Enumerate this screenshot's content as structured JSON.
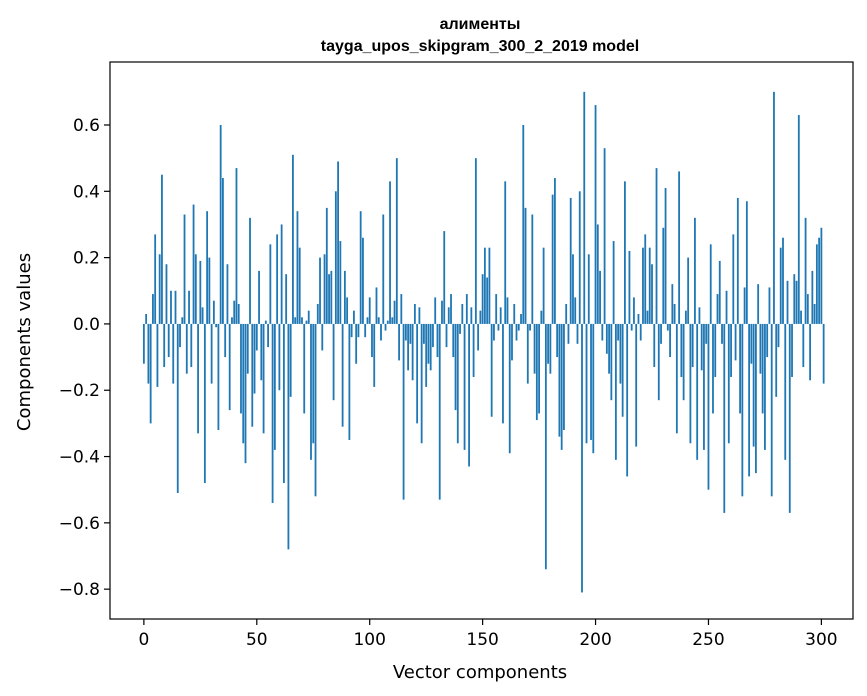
{
  "chart_data": {
    "type": "bar",
    "title": "алименты",
    "subtitle": "tayga_upos_skipgram_300_2_2019 model",
    "xlabel": "Vector components",
    "ylabel": "Components values",
    "xlim": [
      -15,
      314
    ],
    "ylim": [
      -0.89,
      0.79
    ],
    "x_ticks": [
      0,
      50,
      100,
      150,
      200,
      250,
      300
    ],
    "x_tick_labels": [
      "0",
      "50",
      "100",
      "150",
      "200",
      "250",
      "300"
    ],
    "y_ticks": [
      -0.8,
      -0.6,
      -0.4,
      -0.2,
      0.0,
      0.2,
      0.4,
      0.6
    ],
    "y_tick_labels": [
      "−0.8",
      "−0.6",
      "−0.4",
      "−0.2",
      "0.0",
      "0.2",
      "0.4",
      "0.6"
    ],
    "bar_color": "#1f77b4",
    "grid": false,
    "values": [
      -0.12,
      0.03,
      -0.18,
      -0.3,
      0.09,
      0.27,
      -0.19,
      0.21,
      0.45,
      -0.13,
      0.18,
      -0.1,
      0.1,
      -0.18,
      0.1,
      -0.51,
      -0.07,
      0.02,
      0.33,
      -0.15,
      0.1,
      -0.13,
      0.36,
      0.21,
      -0.33,
      0.19,
      0.05,
      -0.48,
      0.34,
      0.2,
      -0.18,
      0.07,
      -0.01,
      -0.32,
      0.6,
      0.44,
      -0.1,
      0.18,
      -0.26,
      0.02,
      0.07,
      0.47,
      0.06,
      -0.27,
      -0.36,
      -0.42,
      -0.15,
      0.32,
      -0.31,
      -0.21,
      -0.08,
      0.16,
      -0.17,
      -0.33,
      0.01,
      -0.07,
      0.24,
      -0.54,
      -0.38,
      0.27,
      -0.2,
      0.3,
      -0.48,
      0.15,
      -0.68,
      -0.22,
      0.51,
      0.02,
      0.34,
      0.23,
      0.02,
      -0.27,
      0.01,
      0.04,
      -0.41,
      -0.36,
      -0.52,
      0.06,
      0.2,
      -0.08,
      0.21,
      0.35,
      0.15,
      0.16,
      -0.23,
      0.4,
      0.49,
      0.25,
      -0.31,
      0.16,
      0.08,
      -0.35,
      -0.04,
      0.04,
      -0.12,
      -0.04,
      0.34,
      0.26,
      -0.04,
      0.02,
      0.08,
      -0.1,
      -0.19,
      0.11,
      0.02,
      -0.05,
      0.33,
      -0.02,
      0.01,
      0.43,
      0.02,
      0.07,
      0.5,
      -0.11,
      0.09,
      -0.53,
      -0.05,
      -0.14,
      -0.06,
      -0.17,
      0.06,
      -0.3,
      0.05,
      -0.36,
      -0.06,
      -0.19,
      -0.12,
      -0.14,
      -0.07,
      0.08,
      -0.1,
      -0.53,
      0.07,
      0.28,
      -0.07,
      0.05,
      0.09,
      -0.1,
      -0.26,
      -0.36,
      -0.03,
      0.06,
      -0.38,
      0.09,
      -0.43,
      0.05,
      -0.16,
      0.5,
      -0.08,
      0.04,
      0.15,
      0.23,
      0.14,
      0.23,
      -0.28,
      -0.05,
      0.09,
      -0.02,
      0.05,
      -0.3,
      0.43,
      0.08,
      -0.39,
      -0.11,
      0.06,
      -0.05,
      -0.02,
      0.03,
      0.6,
      0.35,
      -0.18,
      -0.02,
      0.33,
      -0.15,
      -0.29,
      -0.27,
      0.04,
      0.23,
      -0.74,
      -0.12,
      -0.15,
      0.39,
      0.44,
      -0.1,
      -0.34,
      -0.38,
      -0.32,
      0.06,
      -0.06,
      0.38,
      0.21,
      0.08,
      -0.06,
      0.4,
      -0.81,
      0.7,
      -0.36,
      0.21,
      -0.35,
      -0.39,
      0.66,
      0.3,
      0.16,
      -0.05,
      0.53,
      -0.09,
      -0.15,
      -0.23,
      0.25,
      -0.41,
      -0.05,
      -0.18,
      -0.28,
      0.43,
      -0.46,
      0.22,
      -0.02,
      0.08,
      -0.37,
      0.03,
      -0.05,
      0.23,
      0.27,
      0.04,
      0.23,
      0.18,
      -0.13,
      0.47,
      -0.23,
      -0.06,
      0.29,
      0.41,
      -0.02,
      -0.1,
      0.12,
      0.06,
      -0.33,
      0.46,
      -0.16,
      -0.23,
      0.04,
      0.2,
      -0.36,
      -0.13,
      0.32,
      -0.41,
      0.05,
      -0.14,
      -0.38,
      -0.06,
      -0.5,
      0.24,
      -0.27,
      -0.16,
      0.09,
      0.19,
      -0.06,
      -0.57,
      0.1,
      -0.36,
      -0.16,
      0.27,
      -0.11,
      0.38,
      -0.27,
      -0.52,
      0.11,
      0.37,
      -0.46,
      -0.12,
      -0.37,
      -0.45,
      0.12,
      -0.15,
      -0.27,
      -0.38,
      -0.1,
      0.11,
      -0.52,
      0.7,
      -0.22,
      -0.07,
      0.23,
      0.26,
      -0.41,
      0.13,
      -0.57,
      -0.16,
      0.15,
      0.13,
      0.63,
      0.04,
      -0.13,
      0.32,
      0.09,
      -0.17,
      0.16,
      0.06,
      0.24,
      0.26,
      0.29,
      -0.18
    ]
  }
}
